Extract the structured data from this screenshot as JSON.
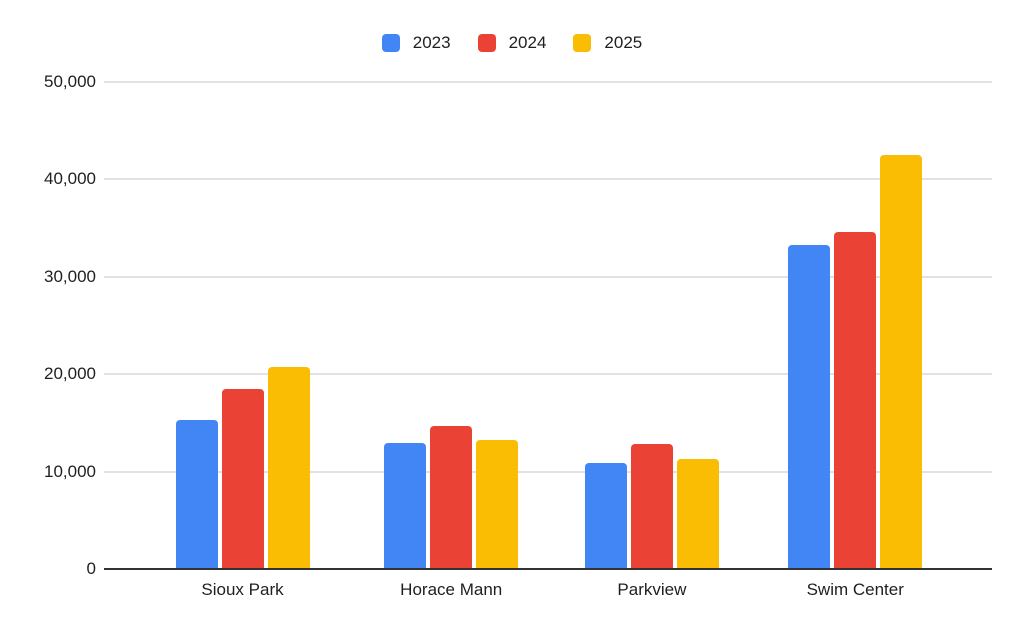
{
  "chart_data": {
    "type": "bar",
    "title": "",
    "categories": [
      "Sioux Park",
      "Horace Mann",
      "Parkview",
      "Swim Center"
    ],
    "series": [
      {
        "name": "2023",
        "color": "#4285F4",
        "values": [
          15300,
          12900,
          10900,
          33300
        ]
      },
      {
        "name": "2024",
        "color": "#EA4335",
        "values": [
          18500,
          14700,
          12800,
          34600
        ]
      },
      {
        "name": "2025",
        "color": "#FBBC04",
        "values": [
          20700,
          13200,
          11300,
          42500
        ]
      }
    ],
    "xlabel": "",
    "ylabel": "",
    "ylim": [
      0,
      50000
    ],
    "ytick_step": 10000,
    "ytick_labels": [
      "0",
      "10,000",
      "20,000",
      "30,000",
      "40,000",
      "50,000"
    ],
    "grid": true,
    "legend_position": "top",
    "colors": {
      "gridline": "#e2e2e2",
      "axis_line": "#333333",
      "text": "#1f1f1f",
      "background": "#ffffff"
    }
  }
}
